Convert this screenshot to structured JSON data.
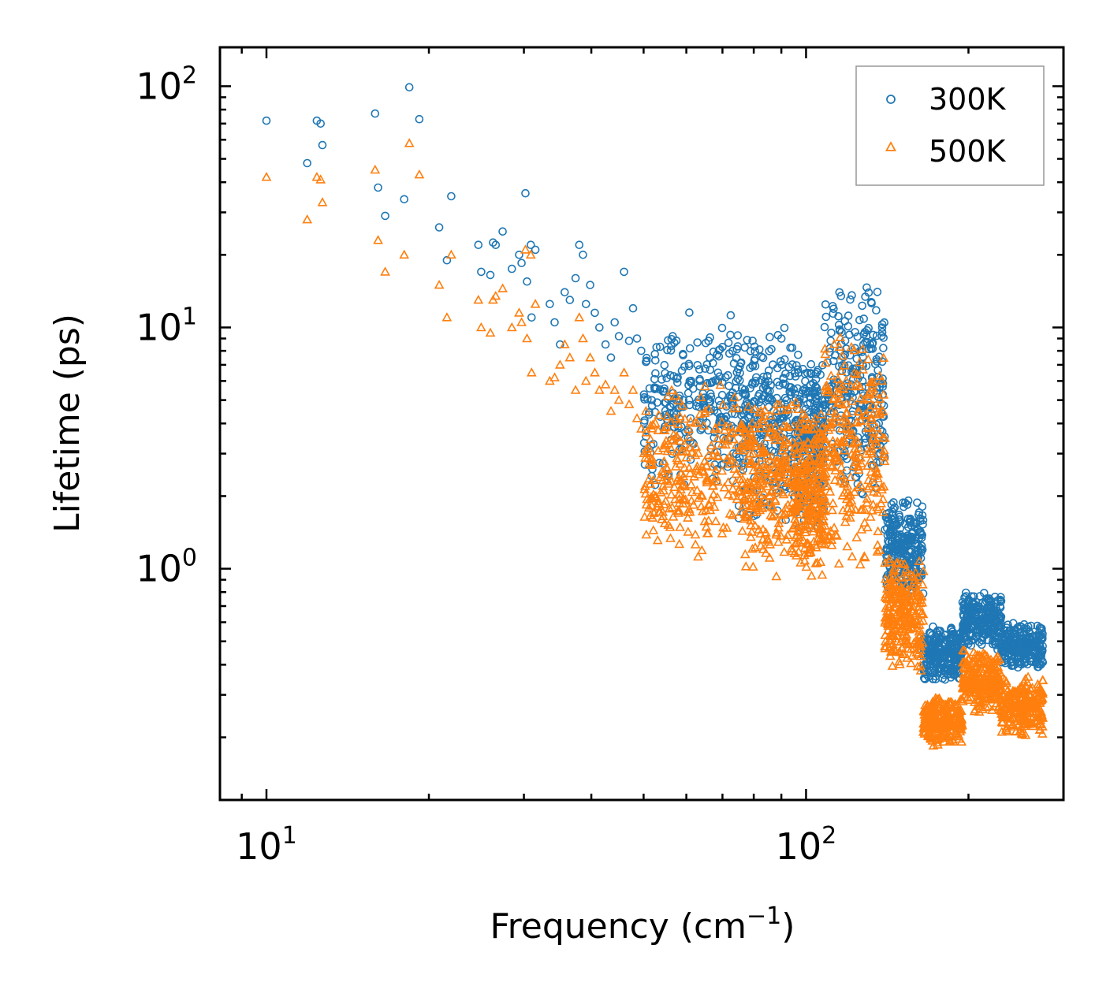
{
  "chart_data": {
    "type": "scatter",
    "xscale": "log",
    "yscale": "log",
    "xlim": [
      8.2,
      300
    ],
    "ylim": [
      0.11,
      145
    ],
    "xlabel": "Frequency (cm",
    "xlabel_sup": "−1",
    "xlabel_tail": ")",
    "ylabel": "Lifetime (ps)",
    "x_ticks": [
      {
        "base": "10",
        "exp": "1",
        "value": 10
      },
      {
        "base": "10",
        "exp": "2",
        "value": 100
      }
    ],
    "y_ticks": [
      {
        "base": "10",
        "exp": "0",
        "value": 1
      },
      {
        "base": "10",
        "exp": "1",
        "value": 10
      },
      {
        "base": "10",
        "exp": "2",
        "value": 100
      }
    ],
    "legend_position": "top-right",
    "series": [
      {
        "name": "300K",
        "marker": "circle",
        "color": "#1f77b4",
        "points": [
          [
            10.0,
            72
          ],
          [
            11.9,
            48
          ],
          [
            12.4,
            72
          ],
          [
            12.6,
            70
          ],
          [
            12.7,
            57
          ],
          [
            15.9,
            77
          ],
          [
            16.1,
            38
          ],
          [
            16.6,
            29
          ],
          [
            18.0,
            34
          ],
          [
            18.4,
            99
          ],
          [
            19.2,
            73
          ],
          [
            20.9,
            26
          ],
          [
            21.6,
            19
          ],
          [
            22.0,
            35
          ],
          [
            24.7,
            22
          ],
          [
            25.0,
            17
          ],
          [
            26.0,
            16.5
          ],
          [
            26.3,
            22.5
          ],
          [
            26.6,
            22
          ],
          [
            27.4,
            25
          ],
          [
            28.5,
            17.5
          ],
          [
            29.4,
            20
          ],
          [
            29.7,
            18.5
          ],
          [
            30.4,
            15.5
          ],
          [
            30.9,
            22
          ],
          [
            31.5,
            21
          ],
          [
            30.2,
            36
          ],
          [
            31.0,
            11
          ],
          [
            33.5,
            12.5
          ],
          [
            34.2,
            10.5
          ],
          [
            35.0,
            8.5
          ],
          [
            35.7,
            14
          ],
          [
            36.5,
            13
          ],
          [
            37.4,
            16
          ],
          [
            38.0,
            22
          ],
          [
            38.6,
            20
          ],
          [
            39.1,
            12.5
          ],
          [
            39.8,
            15
          ],
          [
            40.6,
            11.5
          ],
          [
            41.4,
            10
          ],
          [
            42.5,
            8.5
          ],
          [
            43.5,
            7.5
          ],
          [
            44.2,
            10.5
          ],
          [
            45.0,
            9.2
          ],
          [
            46.0,
            17
          ],
          [
            47.0,
            8.8
          ],
          [
            47.8,
            12
          ],
          [
            48.6,
            9.0
          ],
          [
            49.5,
            8.0
          ],
          [
            50.5,
            7.2
          ]
        ]
      },
      {
        "name": "500K",
        "marker": "triangle",
        "color": "#ff7f0e",
        "points": [
          [
            10.0,
            42
          ],
          [
            11.9,
            28
          ],
          [
            12.4,
            42
          ],
          [
            12.6,
            41
          ],
          [
            12.7,
            33
          ],
          [
            15.9,
            45
          ],
          [
            16.1,
            23
          ],
          [
            16.6,
            17
          ],
          [
            18.0,
            20
          ],
          [
            18.4,
            58
          ],
          [
            19.2,
            43
          ],
          [
            20.9,
            15
          ],
          [
            21.6,
            11
          ],
          [
            22.0,
            20
          ],
          [
            24.7,
            13
          ],
          [
            25.0,
            10
          ],
          [
            26.0,
            9.5
          ],
          [
            26.3,
            13
          ],
          [
            26.6,
            13.5
          ],
          [
            27.4,
            14.5
          ],
          [
            28.5,
            10
          ],
          [
            29.4,
            11.5
          ],
          [
            29.7,
            10.5
          ],
          [
            30.4,
            9
          ],
          [
            30.9,
            20
          ],
          [
            31.5,
            12.5
          ],
          [
            30.2,
            21
          ],
          [
            31.0,
            6.5
          ],
          [
            33.5,
            6.0
          ],
          [
            34.2,
            6.2
          ],
          [
            35.0,
            7.0
          ],
          [
            35.7,
            8.5
          ],
          [
            36.5,
            7.5
          ],
          [
            37.4,
            5.5
          ],
          [
            38.0,
            11
          ],
          [
            38.6,
            9.0
          ],
          [
            39.1,
            6.0
          ],
          [
            39.8,
            7.5
          ],
          [
            40.6,
            6.5
          ],
          [
            41.4,
            5.5
          ],
          [
            42.5,
            5.8
          ],
          [
            43.5,
            4.5
          ],
          [
            44.2,
            5.5
          ],
          [
            45.0,
            5.0
          ],
          [
            46.0,
            6.5
          ],
          [
            47.0,
            4.8
          ],
          [
            47.8,
            5.5
          ],
          [
            48.6,
            4.2
          ],
          [
            49.5,
            3.8
          ],
          [
            50.5,
            4.5
          ]
        ]
      }
    ],
    "dense_regions": [
      {
        "series": "300K",
        "segments": [
          {
            "x_range": [
              50,
              75
            ],
            "y_range": [
              2.0,
              12
            ]
          },
          {
            "x_range": [
              75,
              95
            ],
            "y_range": [
              1.5,
              11
            ]
          },
          {
            "x_range": [
              95,
              108
            ],
            "y_range": [
              1.4,
              8
            ]
          },
          {
            "x_range": [
              108,
              140
            ],
            "y_range": [
              1.8,
              16
            ]
          },
          {
            "x_range": [
              140,
              165
            ],
            "y_range": [
              0.75,
              2.0
            ]
          },
          {
            "x_range": [
              165,
              195
            ],
            "y_range": [
              0.33,
              0.6
            ]
          },
          {
            "x_range": [
              195,
              230
            ],
            "y_range": [
              0.45,
              0.82
            ]
          },
          {
            "x_range": [
              230,
              275
            ],
            "y_range": [
              0.38,
              0.6
            ]
          }
        ]
      },
      {
        "series": "500K",
        "segments": [
          {
            "x_range": [
              50,
              75
            ],
            "y_range": [
              1.1,
              6
            ]
          },
          {
            "x_range": [
              75,
              95
            ],
            "y_range": [
              0.9,
              5.5
            ]
          },
          {
            "x_range": [
              95,
              108
            ],
            "y_range": [
              0.9,
              5
            ]
          },
          {
            "x_range": [
              108,
              140
            ],
            "y_range": [
              0.9,
              10
            ]
          },
          {
            "x_range": [
              140,
              165
            ],
            "y_range": [
              0.35,
              1.2
            ]
          },
          {
            "x_range": [
              165,
              195
            ],
            "y_range": [
              0.18,
              0.3
            ]
          },
          {
            "x_range": [
              195,
              230
            ],
            "y_range": [
              0.25,
              0.48
            ]
          },
          {
            "x_range": [
              230,
              275
            ],
            "y_range": [
              0.2,
              0.36
            ]
          }
        ]
      }
    ]
  }
}
